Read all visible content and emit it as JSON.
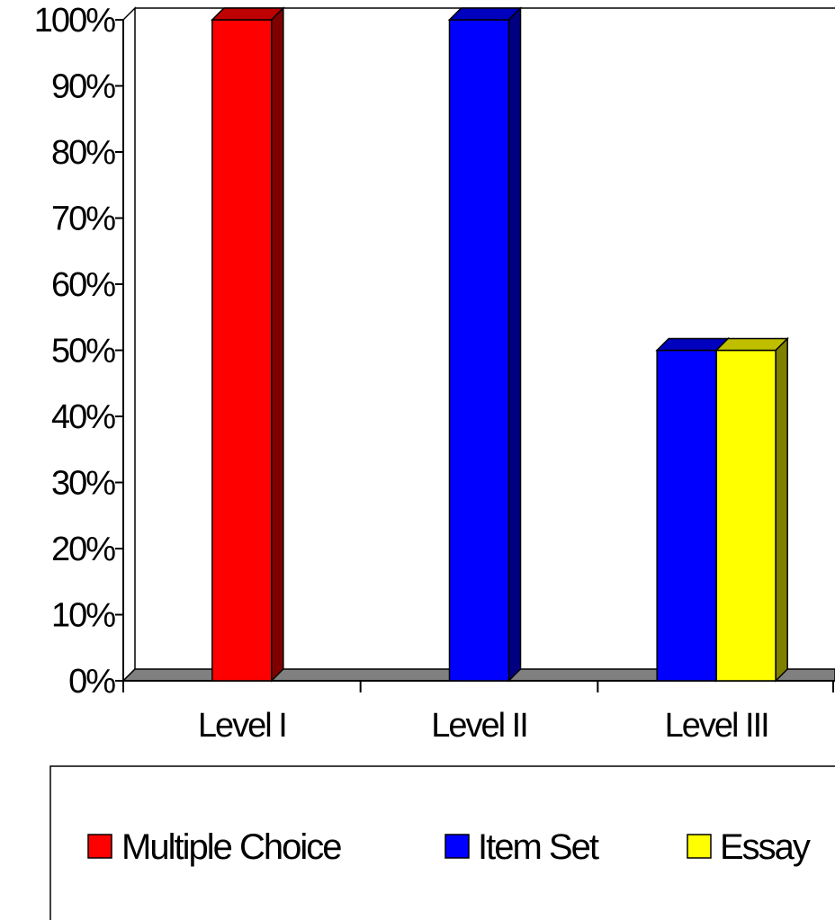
{
  "chart_data": {
    "type": "bar",
    "style": "3d-clustered-column",
    "categories": [
      "Level I",
      "Level II",
      "Level III"
    ],
    "series": [
      {
        "name": "Multiple Choice",
        "color": "#ff0000",
        "values": [
          100,
          0,
          0
        ]
      },
      {
        "name": "Item Set",
        "color": "#0000ff",
        "values": [
          0,
          100,
          50
        ]
      },
      {
        "name": "Essay",
        "color": "#ffff00",
        "values": [
          0,
          0,
          50
        ]
      }
    ],
    "y_ticks": [
      "0%",
      "10%",
      "20%",
      "30%",
      "40%",
      "50%",
      "60%",
      "70%",
      "80%",
      "90%",
      "100%"
    ],
    "ylim": [
      0,
      100
    ],
    "y_unit": "%",
    "grid": false,
    "legend_position": "bottom",
    "floor_color": "#808080"
  }
}
